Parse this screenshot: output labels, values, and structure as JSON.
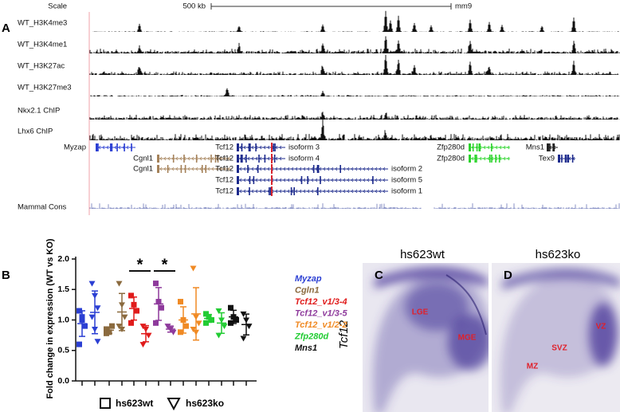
{
  "browser": {
    "panel": "A",
    "scale_label": "Scale",
    "scale_bar": "500 kb",
    "assembly": "mm9",
    "tracks": [
      "WT_H3K4me3",
      "WT_H3K4me1",
      "WT_H3K27ac",
      "WT_H3K27me3",
      "Nkx2.1 ChIP",
      "Lhx6 ChIP"
    ],
    "genes": [
      {
        "name": "Myzap"
      },
      {
        "name": "Cgnl1"
      },
      {
        "name": "Cgnl1"
      },
      {
        "name": "Tcf12",
        "isoform": "isoform 3"
      },
      {
        "name": "Tcf12",
        "isoform": "isoform 4"
      },
      {
        "name": "Tcf12",
        "isoform": "isoform 2"
      },
      {
        "name": "Tcf12",
        "isoform": "isoform 5"
      },
      {
        "name": "Tcf12",
        "isoform": "isoform 1"
      },
      {
        "name": "Zfp280d"
      },
      {
        "name": "Zfp280d"
      },
      {
        "name": "Mns1"
      },
      {
        "name": "Tex9"
      }
    ],
    "conservation": "Mammal Cons"
  },
  "chart_data": {
    "type": "scatter",
    "panel": "B",
    "y_label": "Fold change in expression (WT vs KO)",
    "ylim": [
      0,
      2.0
    ],
    "yticks": [
      {
        "value": 0,
        "label": "0.0"
      },
      {
        "value": 0.5,
        "label": "0.5"
      },
      {
        "value": 1.0,
        "label": "1.0"
      },
      {
        "value": 1.5,
        "label": "1.5"
      },
      {
        "value": 2.0,
        "label": "2.0"
      }
    ],
    "groups": [
      {
        "name": "Myzap",
        "color": "#2b3fd3",
        "wt": [
          1.15,
          1.0,
          0.9,
          0.6,
          1.05
        ],
        "ko": [
          1.6,
          1.4,
          1.2,
          1.05,
          0.85,
          0.65
        ]
      },
      {
        "name": "Cgln1",
        "color": "#8b6a3e",
        "wt": [
          0.85,
          0.8,
          0.9,
          0.78
        ],
        "ko": [
          1.6,
          1.25,
          1.05,
          0.9,
          0.85
        ]
      },
      {
        "name": "Tcf12_v1/3-4",
        "color": "#e01b1b",
        "wt": [
          1.4,
          1.25,
          1.15,
          0.95
        ],
        "ko": [
          0.9,
          0.85,
          0.75,
          0.6
        ]
      },
      {
        "name": "Tcf12_v1/3-5",
        "color": "#8e3a9c",
        "wt": [
          1.6,
          1.3,
          1.2,
          0.95
        ],
        "ko": [
          0.9,
          0.85,
          0.8
        ]
      },
      {
        "name": "Tcf12_v1/2-2",
        "color": "#f08a24",
        "wt": [
          1.3,
          1.0,
          0.9,
          0.8
        ],
        "ko": [
          1.85,
          1.05,
          0.95,
          0.85,
          0.8
        ]
      },
      {
        "name": "Zfp280d",
        "color": "#22cc33",
        "wt": [
          1.1,
          1.05,
          1.0,
          0.95
        ],
        "ko": [
          1.15,
          1.0,
          0.9,
          0.75
        ]
      },
      {
        "name": "Mns1",
        "color": "#111111",
        "wt": [
          1.2,
          1.05,
          1.0,
          0.95
        ],
        "ko": [
          1.1,
          1.0,
          0.9,
          0.7
        ]
      }
    ],
    "significance": [
      "*",
      "*"
    ],
    "legend": {
      "wt": "hs623wt",
      "ko": "hs623ko"
    }
  },
  "images": {
    "gene": "Tcf12",
    "C": {
      "panel": "C",
      "title": "hs623wt",
      "labels": [
        "LGE",
        "MGE"
      ]
    },
    "D": {
      "panel": "D",
      "title": "hs623ko",
      "labels": [
        "VZ",
        "SVZ",
        "MZ"
      ]
    }
  }
}
